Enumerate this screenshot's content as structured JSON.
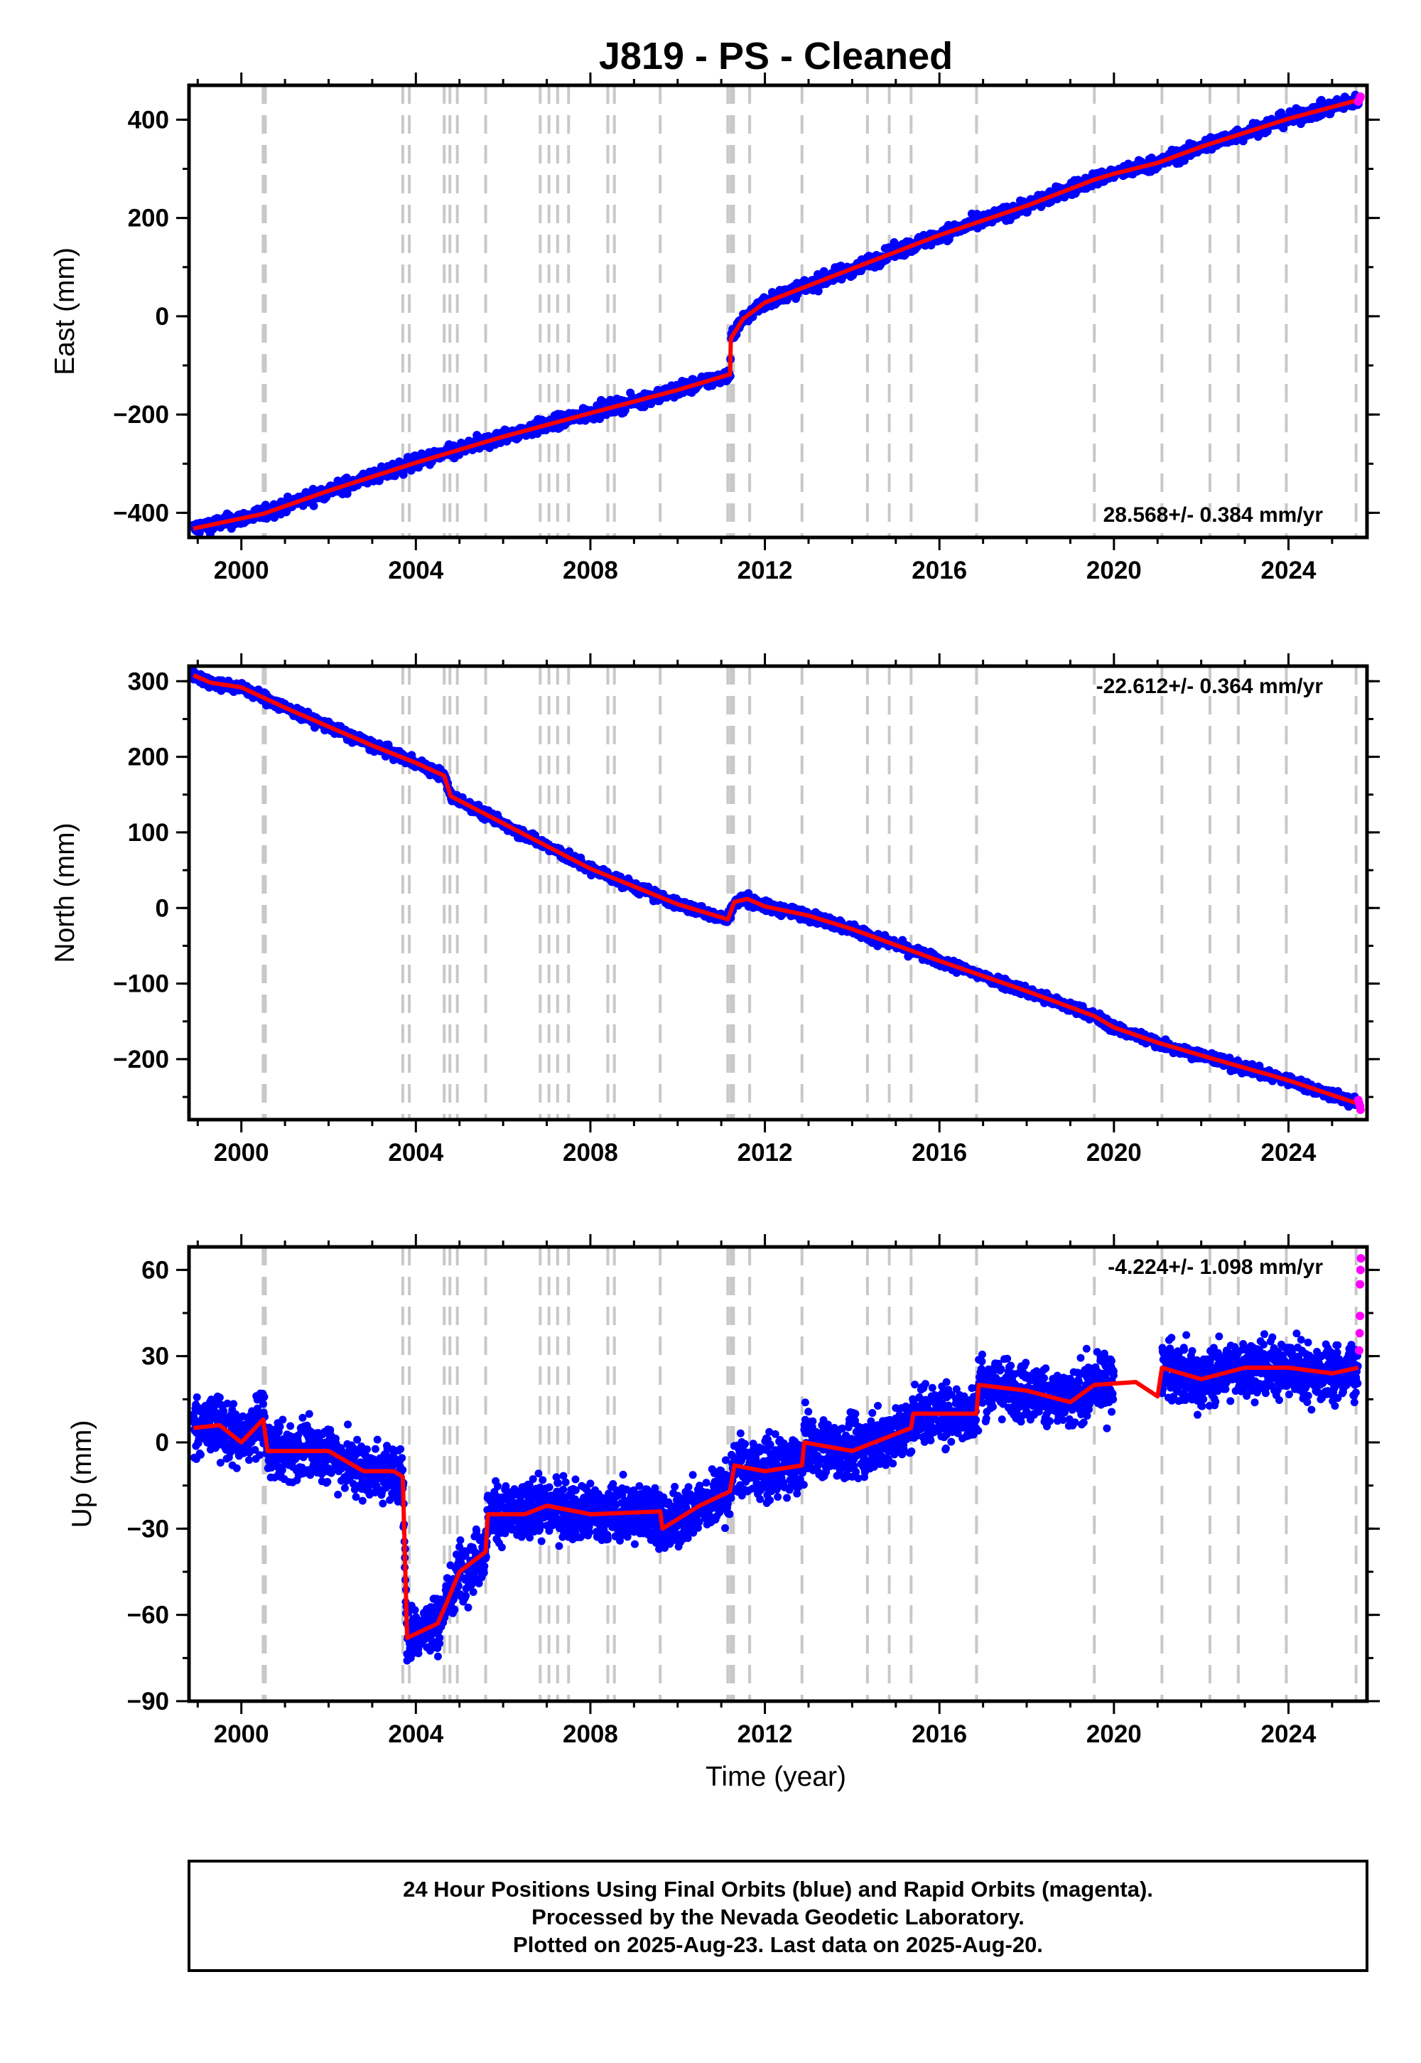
{
  "title": "J819  - PS - Cleaned",
  "x_axis": {
    "label": "Time (year)",
    "range": [
      1998.8,
      2025.8
    ],
    "ticks": [
      "2000",
      "2004",
      "2008",
      "2012",
      "2016",
      "2020",
      "2024"
    ]
  },
  "colors": {
    "final_orbits": "#0000ff",
    "rapid_orbits": "#ff00ff",
    "model": "#ff0000",
    "event_lines": "#c8c8c8"
  },
  "event_lines": [
    2000.5,
    2000.55,
    2003.7,
    2003.85,
    2004.65,
    2004.78,
    2004.95,
    2005.6,
    2006.85,
    2007.05,
    2007.25,
    2007.5,
    2008.4,
    2008.55,
    2009.6,
    2011.15,
    2011.22,
    2011.28,
    2011.65,
    2012.85,
    2014.35,
    2014.85,
    2015.35,
    2016.85,
    2019.55,
    2021.1,
    2022.2,
    2022.85,
    2023.95,
    2025.55
  ],
  "footer": {
    "line1": "24 Hour Positions Using Final Orbits (blue) and Rapid Orbits (magenta).",
    "line2": "Processed by the Nevada Geodetic Laboratory.",
    "line3": "Plotted on 2025-Aug-23. Last data on 2025-Aug-20."
  },
  "chart_data": [
    {
      "type": "scatter",
      "component": "East",
      "ylabel": "East (mm)",
      "ylim": [
        -450,
        470
      ],
      "yticks": [
        "400",
        "200",
        "0",
        "−200",
        "−400"
      ],
      "ytick_values": [
        400,
        200,
        0,
        -200,
        -400
      ],
      "rate_text": "28.568+/- 0.384 mm/yr",
      "rate_position": "bottom-right",
      "model_line": [
        [
          1998.9,
          -432
        ],
        [
          2000.5,
          -402
        ],
        [
          2002.0,
          -355
        ],
        [
          2004.0,
          -298
        ],
        [
          2006.0,
          -245
        ],
        [
          2008.0,
          -197
        ],
        [
          2010.0,
          -150
        ],
        [
          2011.2,
          -118
        ],
        [
          2011.22,
          -45
        ],
        [
          2011.5,
          -5
        ],
        [
          2012.0,
          28
        ],
        [
          2014.0,
          97
        ],
        [
          2016.0,
          165
        ],
        [
          2018.0,
          225
        ],
        [
          2019.55,
          278
        ],
        [
          2020.0,
          290
        ],
        [
          2021.0,
          312
        ],
        [
          2022.0,
          345
        ],
        [
          2024.0,
          402
        ],
        [
          2025.6,
          440
        ]
      ],
      "scatter_spread": 10,
      "rapid_points": [
        [
          2025.6,
          437
        ],
        [
          2025.62,
          440
        ],
        [
          2025.64,
          444
        ],
        [
          2025.65,
          447
        ]
      ]
    },
    {
      "type": "scatter",
      "component": "North",
      "ylabel": "North (mm)",
      "ylim": [
        -280,
        320
      ],
      "yticks": [
        "300",
        "200",
        "100",
        "0",
        "−100",
        "−200"
      ],
      "ytick_values": [
        300,
        200,
        100,
        0,
        -100,
        -200
      ],
      "rate_text": "-22.612+/- 0.364 mm/yr",
      "rate_position": "top-right",
      "model_line": [
        [
          1998.9,
          308
        ],
        [
          1999.3,
          298
        ],
        [
          2000.0,
          292
        ],
        [
          2001.0,
          265
        ],
        [
          2002.0,
          240
        ],
        [
          2003.0,
          215
        ],
        [
          2004.0,
          192
        ],
        [
          2004.65,
          175
        ],
        [
          2004.8,
          148
        ],
        [
          2006.0,
          112
        ],
        [
          2008.0,
          52
        ],
        [
          2010.0,
          5
        ],
        [
          2011.15,
          -15
        ],
        [
          2011.3,
          8
        ],
        [
          2011.6,
          12
        ],
        [
          2012.0,
          2
        ],
        [
          2013.0,
          -10
        ],
        [
          2014.0,
          -28
        ],
        [
          2016.0,
          -70
        ],
        [
          2018.0,
          -110
        ],
        [
          2019.55,
          -143
        ],
        [
          2020.0,
          -158
        ],
        [
          2021.0,
          -178
        ],
        [
          2022.0,
          -195
        ],
        [
          2024.0,
          -228
        ],
        [
          2025.55,
          -258
        ]
      ],
      "scatter_spread": 5,
      "rapid_points": [
        [
          2025.6,
          -254
        ],
        [
          2025.62,
          -258
        ],
        [
          2025.64,
          -262
        ],
        [
          2025.65,
          -267
        ]
      ]
    },
    {
      "type": "scatter",
      "component": "Up",
      "ylabel": "Up (mm)",
      "ylim": [
        -90,
        68
      ],
      "yticks": [
        "60",
        "30",
        "0",
        "−30",
        "−60",
        "−90"
      ],
      "ytick_values": [
        60,
        30,
        0,
        -30,
        -60,
        -90
      ],
      "rate_text": "-4.224+/- 1.098 mm/yr",
      "rate_position": "top-right",
      "model_line": [
        [
          1998.9,
          5
        ],
        [
          1999.5,
          6
        ],
        [
          2000.0,
          0
        ],
        [
          2000.5,
          8
        ],
        [
          2000.6,
          -3
        ],
        [
          2002.0,
          -3
        ],
        [
          2002.8,
          -10
        ],
        [
          2003.5,
          -10
        ],
        [
          2003.7,
          -12
        ],
        [
          2003.8,
          -68
        ],
        [
          2004.5,
          -63
        ],
        [
          2004.7,
          -56
        ],
        [
          2005.0,
          -45
        ],
        [
          2005.6,
          -38
        ],
        [
          2005.65,
          -25
        ],
        [
          2006.5,
          -25
        ],
        [
          2007.0,
          -22
        ],
        [
          2008.0,
          -25
        ],
        [
          2009.6,
          -24
        ],
        [
          2009.65,
          -30
        ],
        [
          2010.5,
          -22
        ],
        [
          2011.2,
          -17
        ],
        [
          2011.3,
          -8
        ],
        [
          2012.0,
          -10
        ],
        [
          2012.85,
          -8
        ],
        [
          2012.9,
          0
        ],
        [
          2014.0,
          -3
        ],
        [
          2015.35,
          5
        ],
        [
          2015.4,
          10
        ],
        [
          2016.0,
          10
        ],
        [
          2016.85,
          10
        ],
        [
          2016.9,
          20
        ],
        [
          2018.0,
          18
        ],
        [
          2019.0,
          14
        ],
        [
          2019.55,
          20
        ],
        [
          2020.5,
          21
        ],
        [
          2021.0,
          16
        ],
        [
          2021.1,
          26
        ],
        [
          2022.0,
          22
        ],
        [
          2023.0,
          26
        ],
        [
          2024.0,
          26
        ],
        [
          2025.0,
          24
        ],
        [
          2025.6,
          26
        ]
      ],
      "scatter_spread": 7,
      "gap": [
        2020.0,
        2021.1
      ],
      "rapid_points": [
        [
          2025.62,
          32
        ],
        [
          2025.63,
          38
        ],
        [
          2025.64,
          44
        ],
        [
          2025.64,
          55
        ],
        [
          2025.65,
          60
        ],
        [
          2025.66,
          64
        ]
      ]
    }
  ]
}
